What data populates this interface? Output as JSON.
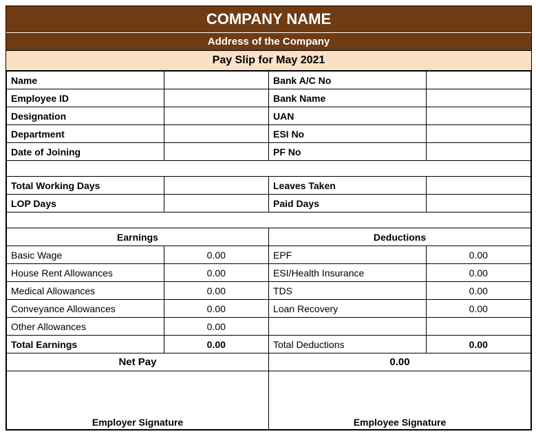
{
  "header": {
    "company_name": "COMPANY NAME",
    "address": "Address of the Company",
    "period_title": "Pay Slip for May 2021"
  },
  "employee_left": [
    {
      "label": "Name",
      "value": ""
    },
    {
      "label": "Employee ID",
      "value": ""
    },
    {
      "label": "Designation",
      "value": ""
    },
    {
      "label": "Department",
      "value": ""
    },
    {
      "label": "Date of Joining",
      "value": ""
    }
  ],
  "employee_right": [
    {
      "label": "Bank A/C No",
      "value": ""
    },
    {
      "label": "Bank Name",
      "value": ""
    },
    {
      "label": "UAN",
      "value": ""
    },
    {
      "label": "ESI No",
      "value": ""
    },
    {
      "label": "PF No",
      "value": ""
    }
  ],
  "attendance_left": [
    {
      "label": "Total Working Days",
      "value": ""
    },
    {
      "label": "LOP Days",
      "value": ""
    }
  ],
  "attendance_right": [
    {
      "label": "Leaves Taken",
      "value": ""
    },
    {
      "label": "Paid Days",
      "value": ""
    }
  ],
  "sections": {
    "earnings_label": "Earnings",
    "deductions_label": "Deductions"
  },
  "earnings": [
    {
      "label": "Basic Wage",
      "value": "0.00"
    },
    {
      "label": "House Rent Allowances",
      "value": "0.00"
    },
    {
      "label": "Medical Allowances",
      "value": "0.00"
    },
    {
      "label": "Conveyance Allowances",
      "value": "0.00"
    },
    {
      "label": "Other Allowances",
      "value": "0.00"
    }
  ],
  "deductions": [
    {
      "label": "EPF",
      "value": "0.00"
    },
    {
      "label": "ESI/Health Insurance",
      "value": "0.00"
    },
    {
      "label": "TDS",
      "value": "0.00"
    },
    {
      "label": "Loan Recovery",
      "value": "0.00"
    }
  ],
  "totals": {
    "earnings_label": "Total Earnings",
    "earnings_value": "0.00",
    "deductions_label": "Total Deductions",
    "deductions_value": "0.00"
  },
  "netpay": {
    "label": "Net Pay",
    "value": "0.00"
  },
  "signatures": {
    "employer": "Employer Signature",
    "employee": "Employee Signature"
  },
  "styling": {
    "header_bg": "#6e3b14",
    "header_text": "#ffffff",
    "period_bg": "#f9e0c7",
    "border_color": "#000000",
    "company_fontsize": 22,
    "address_fontsize": 15,
    "period_fontsize": 16,
    "body_fontsize": 14
  }
}
